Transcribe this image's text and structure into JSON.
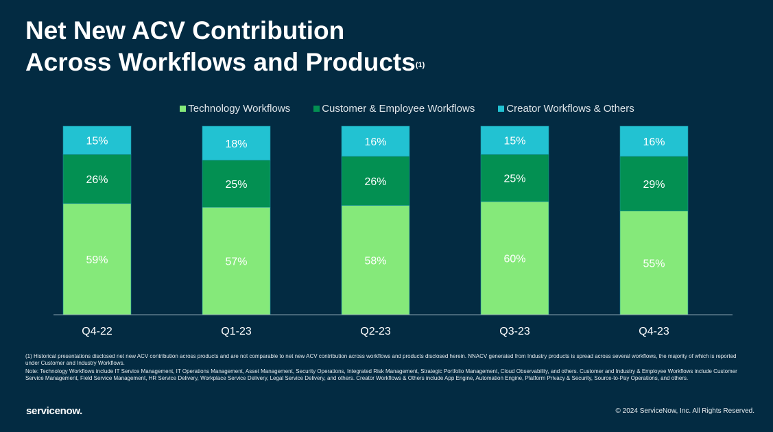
{
  "title_line1": "Net New ACV Contribution",
  "title_line2": "Across Workflows and Products",
  "title_sup": "(1)",
  "colors": {
    "background": "#032b42",
    "technology": "#85e97a",
    "customer_employee": "#039052",
    "creator": "#22c2d2"
  },
  "chart_data": {
    "type": "bar",
    "stacked": true,
    "percent": true,
    "categories": [
      "Q4-22",
      "Q1-23",
      "Q2-23",
      "Q3-23",
      "Q4-23"
    ],
    "series": [
      {
        "name": "Technology Workflows",
        "values": [
          59,
          57,
          58,
          60,
          55
        ],
        "labels": [
          "59%",
          "57%",
          "58%",
          "60%",
          "55%"
        ]
      },
      {
        "name": "Customer & Employee Workflows",
        "values": [
          26,
          25,
          26,
          25,
          29
        ],
        "labels": [
          "26%",
          "25%",
          "26%",
          "25%",
          "29%"
        ]
      },
      {
        "name": "Creator Workflows & Others",
        "values": [
          15,
          18,
          16,
          15,
          16
        ],
        "labels": [
          "15%",
          "18%",
          "16%",
          "15%",
          "16%"
        ]
      }
    ],
    "ylim": [
      0,
      100
    ],
    "legend_position": "top",
    "grid": false
  },
  "footnote1": "(1) Historical presentations disclosed net new ACV contribution across products and are not comparable to net new ACV contribution across workflows and products disclosed herein. NNACV generated from Industry products is spread across several workflows, the majority of which is reported under Customer and Industry Workflows.",
  "footnote2": "Note: Technology Workflows include IT Service Management, IT Operations Management, Asset Management, Security Operations, Integrated Risk Management, Strategic Portfolio Management, Cloud Observability, and others. Customer and Industry & Employee Workflows include Customer Service Management, Field Service Management, HR Service Delivery, Workplace Service Delivery, Legal Service Delivery, and others. Creator Workflows & Others include App Engine, Automation Engine, Platform Privacy & Security, Source-to-Pay Operations, and others.",
  "logo": "servicenow.",
  "copyright": "© 2024 ServiceNow, Inc. All Rights Reserved."
}
